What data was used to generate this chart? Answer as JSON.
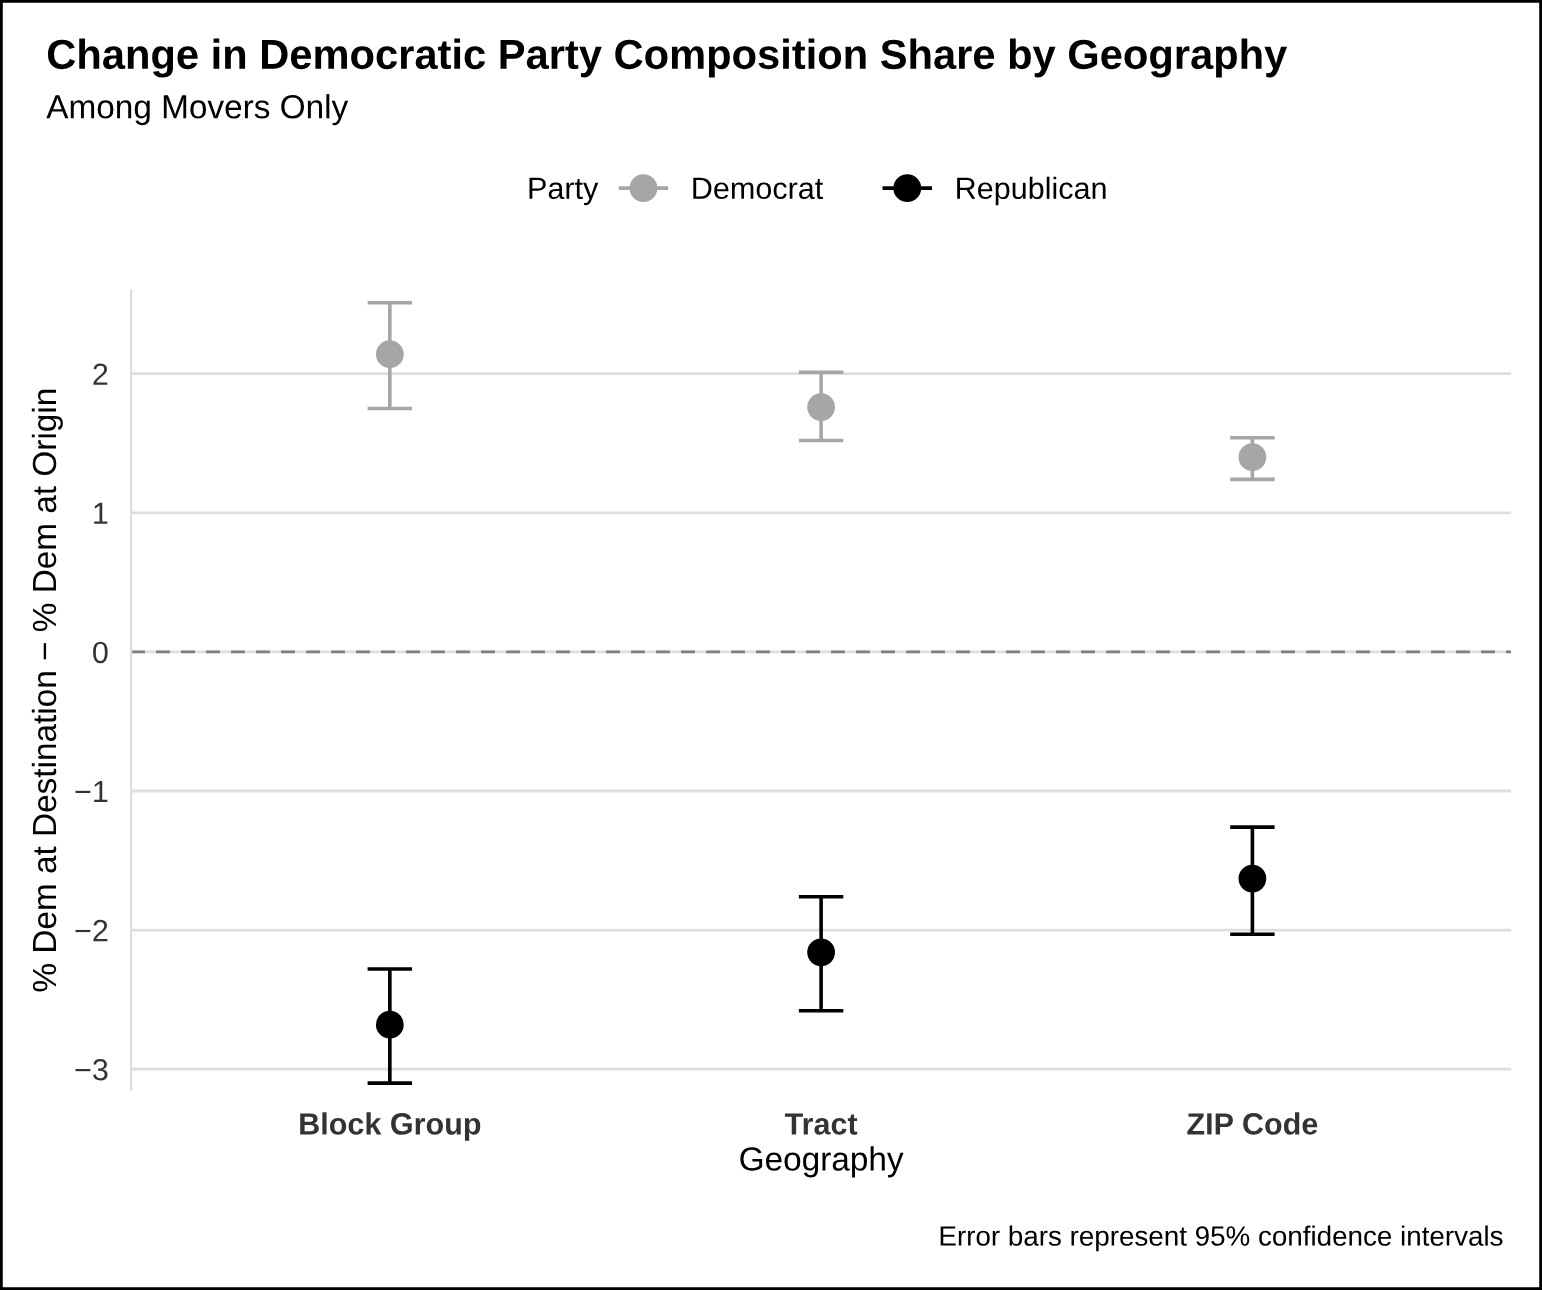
{
  "chart_data": {
    "type": "scatter",
    "title": "Change in Democratic Party Composition Share by Geography",
    "subtitle": "Among Movers Only",
    "xlabel": "Geography",
    "ylabel": "% Dem at Destination − % Dem at Origin",
    "legend_title": "Party",
    "categories": [
      "Block Group",
      "Tract",
      "ZIP Code"
    ],
    "series": [
      {
        "name": "Democrat",
        "color": "#a6a6a6",
        "values": [
          2.14,
          1.76,
          1.4
        ],
        "errors": [
          [
            1.75,
            2.51
          ],
          [
            1.52,
            2.01
          ],
          [
            1.24,
            1.54
          ]
        ]
      },
      {
        "name": "Republican",
        "color": "#000000",
        "values": [
          -2.68,
          -2.16,
          -1.63
        ],
        "errors": [
          [
            -3.1,
            -2.28
          ],
          [
            -2.58,
            -1.76
          ],
          [
            -2.03,
            -1.26
          ]
        ]
      }
    ],
    "ylim": [
      -3.15,
      2.6
    ],
    "yticks": [
      {
        "value": -3,
        "label": "−3"
      },
      {
        "value": -2,
        "label": "−2"
      },
      {
        "value": -1,
        "label": "−1"
      },
      0,
      1,
      2
    ],
    "ref_lines": [
      {
        "axis": "y",
        "value": 0,
        "label": null,
        "color": "#7f7f7f",
        "line_style": "dashed"
      }
    ],
    "annotations": [
      "Error bars represent 95% confidence intervals"
    ],
    "grid": "y",
    "legend": "top",
    "marker": "circle"
  }
}
